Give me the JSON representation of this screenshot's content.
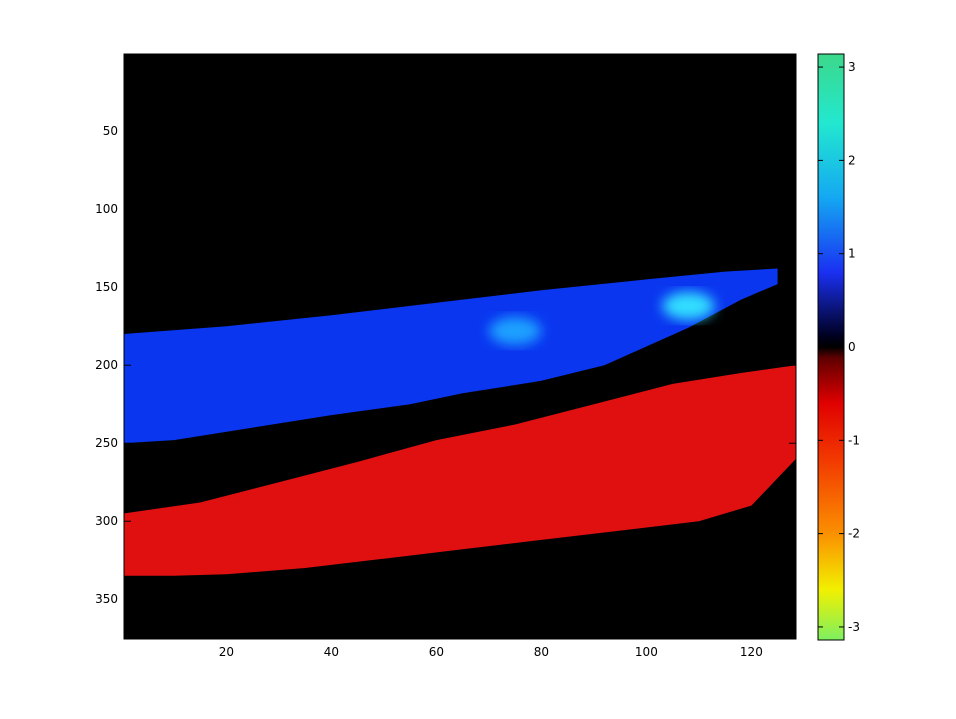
{
  "chart_data": [
    {
      "type": "heatmap",
      "title": "",
      "xlabel": "",
      "ylabel": "",
      "xlim": [
        0.5,
        128.5
      ],
      "ylim": [
        0.5,
        375.5
      ],
      "y_reversed": true,
      "x_ticks": [
        20,
        40,
        60,
        80,
        100,
        120
      ],
      "y_ticks": [
        50,
        100,
        150,
        200,
        250,
        300,
        350
      ],
      "x_tick_labels": [
        "20",
        "40",
        "60",
        "80",
        "100",
        "120"
      ],
      "y_tick_labels": [
        "50",
        "100",
        "150",
        "200",
        "250",
        "300",
        "350"
      ],
      "background": "#000000",
      "regions": [
        {
          "name": "positive-band",
          "approx_value": 1.0,
          "color": "#0a36f0",
          "boundary_top": [
            [
              0.5,
              180
            ],
            [
              20,
              175
            ],
            [
              40,
              168
            ],
            [
              60,
              160
            ],
            [
              80,
              152
            ],
            [
              100,
              145
            ],
            [
              115,
              140
            ],
            [
              125,
              138
            ]
          ],
          "boundary_bottom": [
            [
              125,
              148
            ],
            [
              118,
              158
            ],
            [
              108,
              176
            ],
            [
              100,
              188
            ],
            [
              92,
              200
            ],
            [
              80,
              210
            ],
            [
              65,
              218
            ],
            [
              55,
              225
            ],
            [
              40,
              232
            ],
            [
              25,
              240
            ],
            [
              10,
              248
            ],
            [
              0.5,
              250
            ]
          ]
        },
        {
          "name": "negative-band",
          "approx_value": -1.0,
          "color": "#e01010",
          "boundary_top": [
            [
              0.5,
              295
            ],
            [
              15,
              288
            ],
            [
              30,
              275
            ],
            [
              45,
              262
            ],
            [
              60,
              248
            ],
            [
              75,
              238
            ],
            [
              90,
              225
            ],
            [
              105,
              212
            ],
            [
              118,
              205
            ],
            [
              128.5,
              200
            ]
          ],
          "boundary_bottom": [
            [
              128.5,
              260
            ],
            [
              120,
              290
            ],
            [
              110,
              300
            ],
            [
              95,
              306
            ],
            [
              80,
              312
            ],
            [
              65,
              318
            ],
            [
              50,
              324
            ],
            [
              35,
              330
            ],
            [
              20,
              334
            ],
            [
              10,
              335
            ],
            [
              0.5,
              335
            ]
          ]
        }
      ],
      "highlights": [
        {
          "x": 75,
          "y": 178,
          "approx_value": 1.6,
          "color": "#1ea0ff"
        },
        {
          "x": 108,
          "y": 162,
          "approx_value": 2.3,
          "color": "#33ddff"
        }
      ]
    },
    {
      "type": "colorbar",
      "clim": [
        -3.14,
        3.14
      ],
      "ticks": [
        3,
        2,
        1,
        0,
        -1,
        -2,
        -3
      ],
      "tick_labels": [
        "3",
        "2",
        "1",
        "0",
        "-1",
        "-2",
        "-3"
      ],
      "stops": [
        {
          "value": 3.14,
          "color": "#3cd88a"
        },
        {
          "value": 2.4,
          "color": "#22e8d0"
        },
        {
          "value": 1.6,
          "color": "#14a8f2"
        },
        {
          "value": 0.8,
          "color": "#1a30f2"
        },
        {
          "value": 0.12,
          "color": "#000020"
        },
        {
          "value": 0.0,
          "color": "#000000"
        },
        {
          "value": -0.12,
          "color": "#600000"
        },
        {
          "value": -0.6,
          "color": "#e00000"
        },
        {
          "value": -1.2,
          "color": "#f23800"
        },
        {
          "value": -2.0,
          "color": "#fb9000"
        },
        {
          "value": -2.6,
          "color": "#f2f000"
        },
        {
          "value": -3.14,
          "color": "#7ef060"
        }
      ]
    }
  ]
}
